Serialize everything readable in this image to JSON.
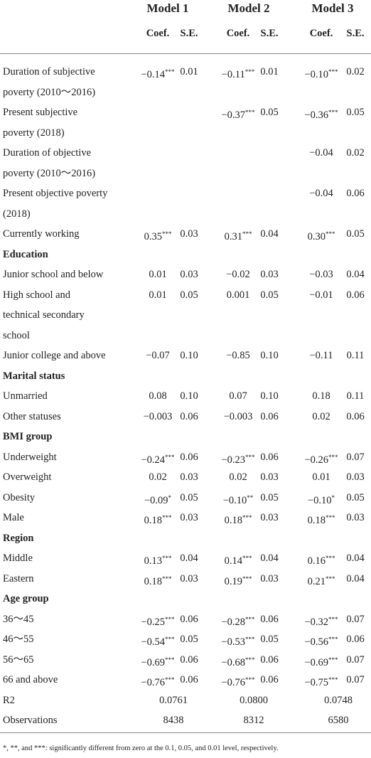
{
  "header": {
    "models": [
      "Model 1",
      "Model 2",
      "Model 3"
    ],
    "columns": [
      "Coef.",
      "S.E.",
      "Coef.",
      "S.E.",
      "Coef.",
      "S.E."
    ]
  },
  "rows": [
    {
      "label": [
        "Duration of subjective",
        "poverty (2010～2016)"
      ],
      "cells": [
        "−0.14",
        "0.01",
        "−0.11",
        "0.01",
        "−0.10",
        "0.02"
      ],
      "sig": [
        "***",
        "***",
        "***"
      ]
    },
    {
      "label": [
        "Present subjective",
        "poverty (2018)"
      ],
      "cells": [
        null,
        null,
        "−0.37",
        "0.05",
        "−0.36",
        "0.05"
      ],
      "sig": [
        null,
        "***",
        "***"
      ]
    },
    {
      "label": [
        "Duration of objective",
        "poverty (2010～2016)"
      ],
      "cells": [
        null,
        null,
        null,
        null,
        "−0.04",
        "0.02"
      ],
      "sig": [
        null,
        null,
        null
      ]
    },
    {
      "label": [
        "Present objective poverty",
        "(2018)"
      ],
      "cells": [
        null,
        null,
        null,
        null,
        "−0.04",
        "0.06"
      ],
      "sig": [
        null,
        null,
        null
      ]
    },
    {
      "label": [
        "Currently working"
      ],
      "cells": [
        "0.35",
        "0.03",
        "0.31",
        "0.04",
        "0.30",
        "0.05"
      ],
      "sig": [
        "***",
        "***",
        "***"
      ]
    },
    {
      "section": "Education"
    },
    {
      "label": [
        "Junior school and below"
      ],
      "cells": [
        "0.01",
        "0.03",
        "−0.02",
        "0.03",
        "−0.03",
        "0.04"
      ],
      "sig": [
        null,
        null,
        null
      ]
    },
    {
      "label": [
        "High school and",
        "technical secondary",
        "school"
      ],
      "cells": [
        "0.01",
        "0.05",
        "0.001",
        "0.05",
        "−0.01",
        "0.06"
      ],
      "sig": [
        null,
        null,
        null
      ]
    },
    {
      "label": [
        "Junior college and above"
      ],
      "cells": [
        "−0.07",
        "0.10",
        "−0.85",
        "0.10",
        "−0.11",
        "0.11"
      ],
      "sig": [
        null,
        null,
        null
      ]
    },
    {
      "section": "Marital status"
    },
    {
      "label": [
        "Unmarried"
      ],
      "cells": [
        "0.08",
        "0.10",
        "0.07",
        "0.10",
        "0.18",
        "0.11"
      ],
      "sig": [
        null,
        null,
        null
      ]
    },
    {
      "label": [
        "Other statuses"
      ],
      "cells": [
        "−0.003",
        "0.06",
        "−0.003",
        "0.06",
        "0.02",
        "0.06"
      ],
      "sig": [
        null,
        null,
        null
      ]
    },
    {
      "section": "BMI group"
    },
    {
      "label": [
        "Underweight"
      ],
      "cells": [
        "−0.24",
        "0.06",
        "−0.23",
        "0.06",
        "−0.26",
        "0.07"
      ],
      "sig": [
        "***",
        "***",
        "***"
      ]
    },
    {
      "label": [
        "Overweight"
      ],
      "cells": [
        "0.02",
        "0.03",
        "0.02",
        "0.03",
        "0.01",
        "0.03"
      ],
      "sig": [
        null,
        null,
        null
      ]
    },
    {
      "label": [
        "Obesity"
      ],
      "cells": [
        "−0.09",
        "0.05",
        "−0.10",
        "0.05",
        "−0.10",
        "0.05"
      ],
      "sig": [
        "*",
        "**",
        "*"
      ]
    },
    {
      "label": [
        "Male"
      ],
      "cells": [
        "0.18",
        "0.03",
        "0.18",
        "0.03",
        "0.18",
        "0.03"
      ],
      "sig": [
        "***",
        "***",
        "***"
      ]
    },
    {
      "section": "Region"
    },
    {
      "label": [
        "Middle"
      ],
      "cells": [
        "0.13",
        "0.04",
        "0.14",
        "0.04",
        "0.16",
        "0.04"
      ],
      "sig": [
        "***",
        "***",
        "***"
      ]
    },
    {
      "label": [
        "Eastern"
      ],
      "cells": [
        "0.18",
        "0.03",
        "0.19",
        "0.03",
        "0.21",
        "0.04"
      ],
      "sig": [
        "***",
        "***",
        "***"
      ]
    },
    {
      "section": "Age group"
    },
    {
      "label": [
        "36～45"
      ],
      "cells": [
        "−0.25",
        "0.06",
        "−0.28",
        "0.06",
        "−0.32",
        "0.07"
      ],
      "sig": [
        "***",
        "***",
        "***"
      ]
    },
    {
      "label": [
        "46～55"
      ],
      "cells": [
        "−0.54",
        "0.05",
        "−0.53",
        "0.05",
        "−0.56",
        "0.06"
      ],
      "sig": [
        "***",
        "***",
        "***"
      ]
    },
    {
      "label": [
        "56～65"
      ],
      "cells": [
        "−0.69",
        "0.06",
        "−0.68",
        "0.06",
        "−0.69",
        "0.07"
      ],
      "sig": [
        "***",
        "***",
        "***"
      ]
    },
    {
      "label": [
        "66 and above"
      ],
      "cells": [
        "−0.76",
        "0.06",
        "−0.76",
        "0.06",
        "−0.75",
        "0.07"
      ],
      "sig": [
        "***",
        "***",
        "***"
      ]
    },
    {
      "label": [
        "R2"
      ],
      "span": [
        "0.0761",
        "0.0800",
        "0.0748"
      ]
    },
    {
      "label": [
        "Observations"
      ],
      "span": [
        "8438",
        "8312",
        "6580"
      ]
    }
  ],
  "footnote": "*, **, and ***: significantly different from zero at the 0.1, 0.05, and 0.01 level, respectively."
}
